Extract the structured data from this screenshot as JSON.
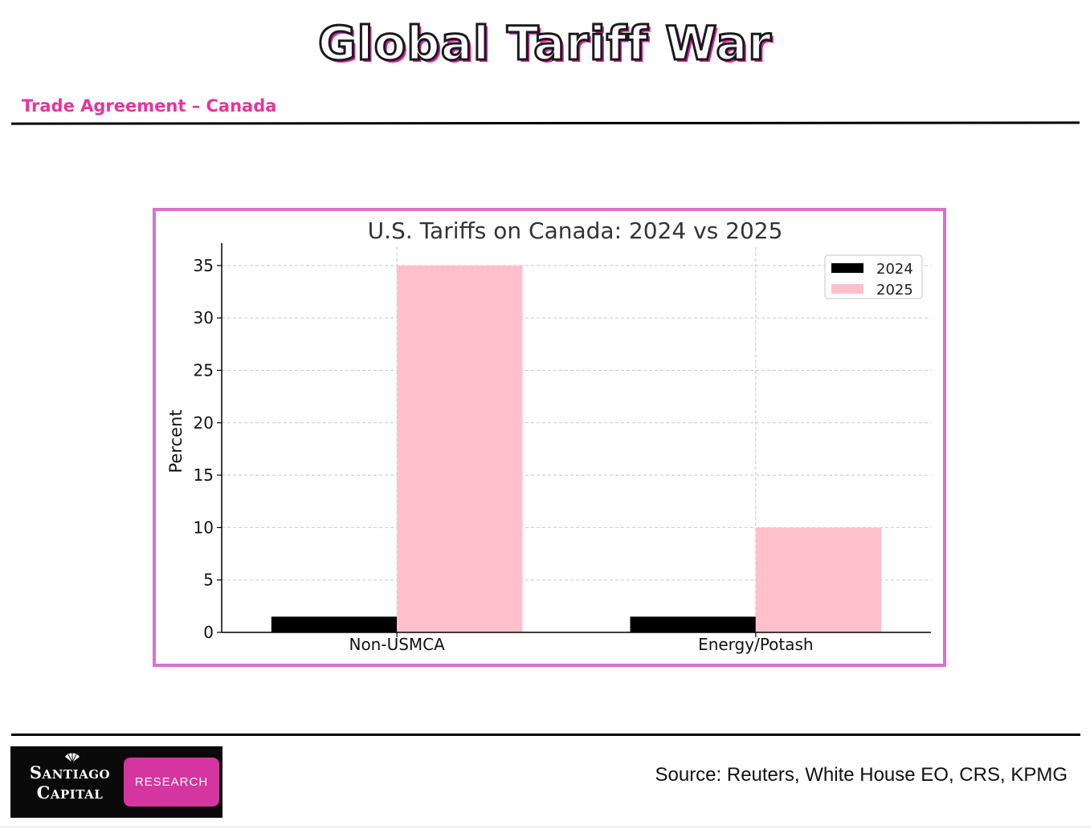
{
  "header": {
    "title": "Global Tariff War",
    "section": "Trade Agreement – Canada"
  },
  "footer": {
    "logo_line1": "Santiago",
    "logo_line2": "Capital",
    "logo_badge": "RESEARCH",
    "source": "Source: Reuters, White House EO, CRS, KPMG"
  },
  "colors": {
    "accent": "#e8339f",
    "frame": "#d672d0",
    "series_2024": "#000000",
    "series_2025": "#ffc0cb"
  },
  "chart_data": {
    "type": "bar",
    "title": "U.S. Tariffs on Canada: 2024 vs 2025",
    "xlabel": "",
    "ylabel": "Percent",
    "categories": [
      "Non-USMCA",
      "Energy/Potash"
    ],
    "series": [
      {
        "name": "2024",
        "values": [
          1.5,
          1.5
        ],
        "color": "#000000"
      },
      {
        "name": "2025",
        "values": [
          35,
          10
        ],
        "color": "#ffc0cb"
      }
    ],
    "ylim": [
      0,
      36.75
    ],
    "yticks": [
      0,
      5,
      10,
      15,
      20,
      25,
      30,
      35
    ],
    "grid": true,
    "legend": "top-right"
  }
}
